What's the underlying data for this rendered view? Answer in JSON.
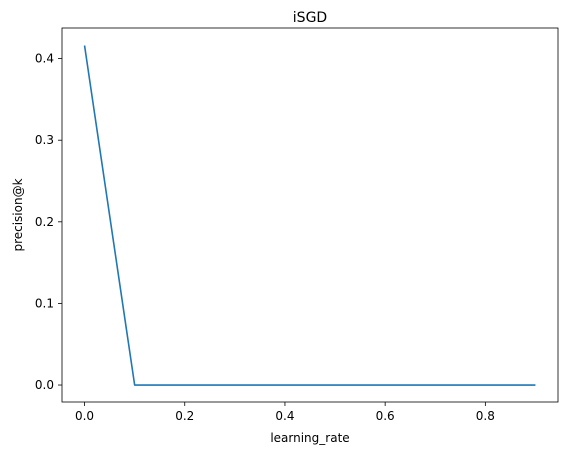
{
  "chart_data": {
    "type": "line",
    "title": "iSGD",
    "xlabel": "learning_rate",
    "ylabel": "precision@k",
    "xlim": [
      -0.045,
      0.945
    ],
    "ylim": [
      -0.0208,
      0.4375
    ],
    "grid": false,
    "x_ticks": [
      "0.0",
      "0.2",
      "0.4",
      "0.6",
      "0.8"
    ],
    "x_tick_values": [
      0.0,
      0.2,
      0.4,
      0.6,
      0.8
    ],
    "y_ticks": [
      "0.0",
      "0.1",
      "0.2",
      "0.3",
      "0.4"
    ],
    "y_tick_values": [
      0.0,
      0.1,
      0.2,
      0.3,
      0.4
    ],
    "series": [
      {
        "color": "#1f77b4",
        "x": [
          0.0,
          0.1,
          0.2,
          0.3,
          0.4,
          0.5,
          0.6,
          0.7,
          0.8,
          0.9
        ],
        "y": [
          0.416,
          0.0,
          0.0,
          0.0,
          0.0,
          0.0,
          0.0,
          0.0,
          0.0,
          0.0
        ]
      }
    ]
  }
}
